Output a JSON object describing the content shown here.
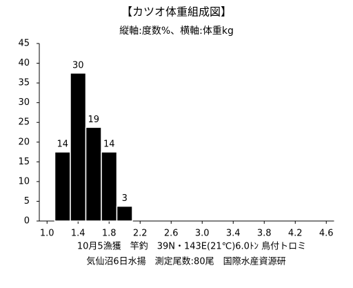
{
  "chart_data": {
    "type": "histogram",
    "title": "【カツオ体重組成図】",
    "subtitle": "縦軸:度数%、横軸:体重kg",
    "bins": [
      1.1,
      1.3,
      1.5,
      1.7,
      1.9,
      2.1
    ],
    "values": [
      17.5,
      37.5,
      23.75,
      17.5,
      3.75
    ],
    "counts": [
      14,
      30,
      19,
      14,
      3
    ],
    "color": "#000000",
    "xlim": [
      0.9,
      4.7
    ],
    "xticks": [
      {
        "value": 1,
        "label": "1.0"
      },
      1.4,
      1.8,
      2.2,
      2.6,
      {
        "value": 3,
        "label": "3.0"
      },
      3.4,
      3.8,
      4.2,
      4.6
    ],
    "ylim": [
      0,
      45
    ],
    "yticks": [
      0,
      5,
      10,
      15,
      20,
      25,
      30,
      35,
      40,
      45
    ],
    "grid": false,
    "notes": [
      "10月5漁獲　竿釣　39N・143E(21℃)6.0ﾄﾝ 鳥付トロミ",
      "気仙沼6日水揚　測定尾数:80尾　国際水産資源研"
    ]
  }
}
